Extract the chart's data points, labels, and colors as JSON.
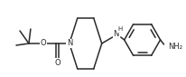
{
  "bg_color": "#ffffff",
  "line_color": "#2a2a2a",
  "line_width": 1.1,
  "font_size": 6.0,
  "figsize": [
    2.07,
    0.85
  ],
  "dpi": 100,
  "N_label": "N",
  "NH_label": "NH",
  "H_label": "H",
  "O_label": "O",
  "NH2_label": "NH₂"
}
